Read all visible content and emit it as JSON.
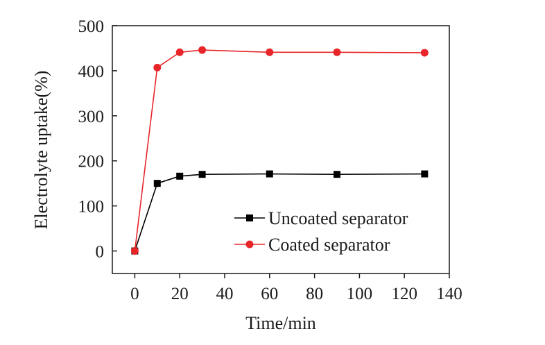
{
  "chart_data": {
    "type": "line",
    "xlabel": "Time/min",
    "ylabel": "Electrolyte uptake(%)",
    "xlim": [
      -10,
      140
    ],
    "ylim": [
      -50,
      500
    ],
    "xticks": [
      0,
      20,
      40,
      60,
      80,
      100,
      120,
      140
    ],
    "yticks": [
      0,
      100,
      200,
      300,
      400,
      500
    ],
    "grid": false,
    "legend_position": "bottom-right",
    "series": [
      {
        "name": "Uncoated separator",
        "color": "#000000",
        "marker": "square",
        "x": [
          0,
          10,
          20,
          30,
          60,
          90,
          129
        ],
        "y": [
          0,
          150,
          166,
          170,
          171,
          170,
          171
        ]
      },
      {
        "name": "Coated separator",
        "color": "#e8262a",
        "marker": "circle",
        "x": [
          0,
          10,
          20,
          30,
          60,
          90,
          129
        ],
        "y": [
          0,
          407,
          441,
          446,
          441,
          441,
          440
        ]
      }
    ]
  }
}
